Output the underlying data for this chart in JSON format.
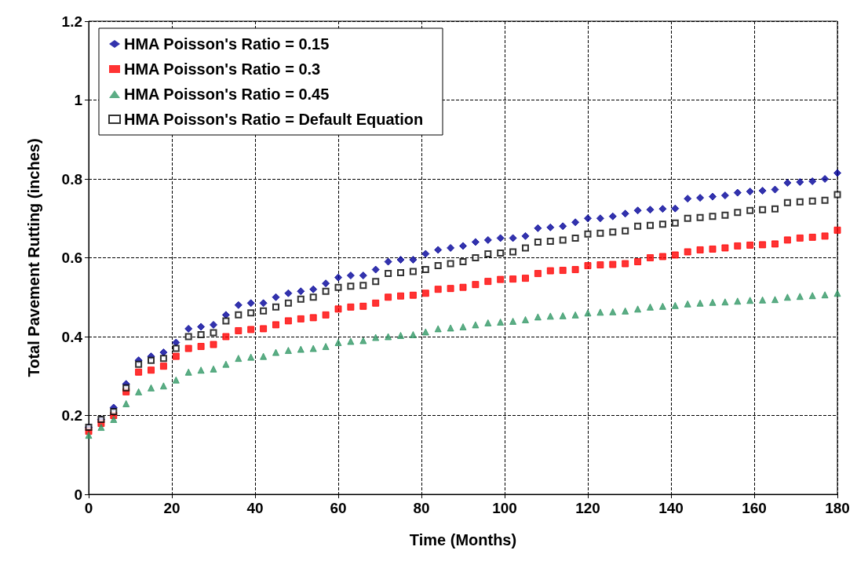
{
  "chart_data": {
    "type": "scatter",
    "xlabel": "Time (Months)",
    "ylabel": "Total Pavement Rutting (inches)",
    "x": [
      0,
      3,
      6,
      9,
      12,
      15,
      18,
      21,
      24,
      27,
      30,
      33,
      36,
      39,
      42,
      45,
      48,
      51,
      54,
      57,
      60,
      63,
      66,
      69,
      72,
      75,
      78,
      81,
      84,
      87,
      90,
      93,
      96,
      99,
      102,
      105,
      108,
      111,
      114,
      117,
      120,
      123,
      126,
      129,
      132,
      135,
      138,
      141,
      144,
      147,
      150,
      153,
      156,
      159,
      162,
      165,
      168,
      171,
      174,
      177,
      180
    ],
    "series": [
      {
        "name": "HMA Poisson's Ratio = 0.15",
        "color": "#000099",
        "marker": "diamond",
        "values": [
          0.17,
          0.19,
          0.22,
          0.28,
          0.34,
          0.35,
          0.36,
          0.385,
          0.42,
          0.425,
          0.43,
          0.455,
          0.48,
          0.485,
          0.485,
          0.5,
          0.51,
          0.515,
          0.52,
          0.535,
          0.55,
          0.555,
          0.555,
          0.57,
          0.59,
          0.595,
          0.595,
          0.61,
          0.62,
          0.625,
          0.63,
          0.64,
          0.645,
          0.65,
          0.65,
          0.655,
          0.675,
          0.677,
          0.68,
          0.69,
          0.7,
          0.7,
          0.705,
          0.712,
          0.72,
          0.722,
          0.724,
          0.725,
          0.75,
          0.752,
          0.755,
          0.758,
          0.765,
          0.768,
          0.77,
          0.773,
          0.79,
          0.792,
          0.794,
          0.8,
          0.815
        ]
      },
      {
        "name": "HMA Poisson's Ratio = 0.3",
        "color": "#ff0000",
        "marker": "square",
        "values": [
          0.16,
          0.18,
          0.2,
          0.26,
          0.31,
          0.315,
          0.325,
          0.35,
          0.37,
          0.375,
          0.38,
          0.4,
          0.415,
          0.418,
          0.42,
          0.43,
          0.44,
          0.445,
          0.448,
          0.455,
          0.47,
          0.475,
          0.477,
          0.485,
          0.5,
          0.503,
          0.505,
          0.51,
          0.52,
          0.522,
          0.525,
          0.532,
          0.54,
          0.545,
          0.546,
          0.548,
          0.56,
          0.567,
          0.568,
          0.57,
          0.58,
          0.582,
          0.583,
          0.585,
          0.59,
          0.6,
          0.603,
          0.607,
          0.615,
          0.62,
          0.622,
          0.625,
          0.63,
          0.632,
          0.633,
          0.635,
          0.645,
          0.65,
          0.652,
          0.655,
          0.67
        ]
      },
      {
        "name": "HMA Poisson's Ratio = 0.45",
        "color": "#339966",
        "marker": "triangle",
        "values": [
          0.15,
          0.17,
          0.19,
          0.23,
          0.26,
          0.27,
          0.275,
          0.29,
          0.31,
          0.315,
          0.318,
          0.33,
          0.345,
          0.348,
          0.35,
          0.36,
          0.365,
          0.368,
          0.37,
          0.375,
          0.385,
          0.388,
          0.39,
          0.398,
          0.4,
          0.403,
          0.405,
          0.412,
          0.42,
          0.422,
          0.425,
          0.43,
          0.435,
          0.437,
          0.439,
          0.443,
          0.45,
          0.452,
          0.453,
          0.455,
          0.46,
          0.462,
          0.463,
          0.465,
          0.47,
          0.475,
          0.477,
          0.479,
          0.483,
          0.485,
          0.487,
          0.488,
          0.49,
          0.492,
          0.493,
          0.494,
          0.5,
          0.502,
          0.504,
          0.506,
          0.51
        ]
      },
      {
        "name": "HMA Poisson's Ratio = Default Equation",
        "color": "#000000",
        "marker": "square",
        "values": [
          0.17,
          0.19,
          0.21,
          0.27,
          0.33,
          0.34,
          0.345,
          0.37,
          0.4,
          0.405,
          0.41,
          0.44,
          0.455,
          0.46,
          0.465,
          0.475,
          0.485,
          0.495,
          0.5,
          0.515,
          0.525,
          0.528,
          0.53,
          0.54,
          0.56,
          0.562,
          0.565,
          0.57,
          0.58,
          0.585,
          0.59,
          0.6,
          0.61,
          0.612,
          0.615,
          0.625,
          0.64,
          0.642,
          0.645,
          0.65,
          0.66,
          0.662,
          0.665,
          0.668,
          0.68,
          0.682,
          0.685,
          0.688,
          0.7,
          0.702,
          0.705,
          0.708,
          0.715,
          0.72,
          0.722,
          0.724,
          0.74,
          0.742,
          0.744,
          0.746,
          0.76
        ]
      }
    ],
    "xlim": [
      0,
      180
    ],
    "xticks": [
      0,
      20,
      40,
      60,
      80,
      100,
      120,
      140,
      160,
      180
    ],
    "ylim": [
      0,
      1.2
    ],
    "yticks": [
      0,
      0.2,
      0.4,
      0.6,
      0.8,
      1,
      1.2
    ],
    "grid": true,
    "legend": "top left"
  }
}
